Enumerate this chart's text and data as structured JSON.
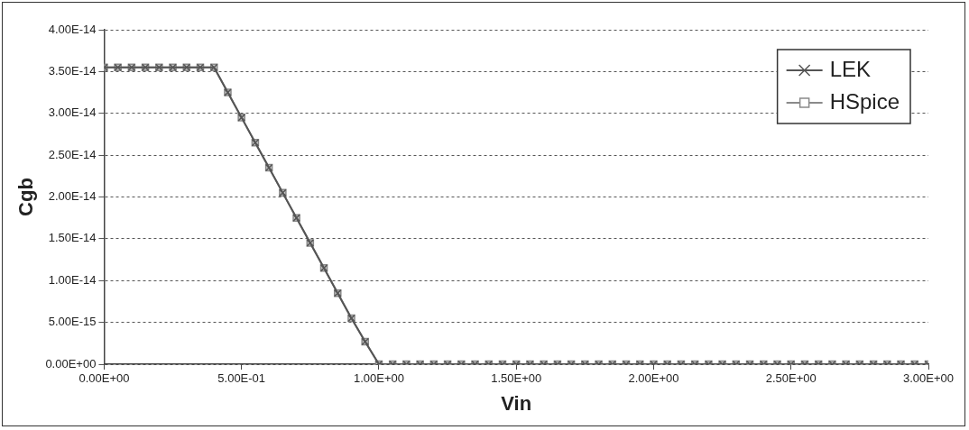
{
  "chart_data": {
    "type": "line",
    "xlabel": "Vin",
    "ylabel": "Cgb",
    "x": [
      0,
      0.05,
      0.1,
      0.15,
      0.2,
      0.25,
      0.3,
      0.35,
      0.4,
      0.45,
      0.5,
      0.55,
      0.6,
      0.65,
      0.7,
      0.75,
      0.8,
      0.85,
      0.9,
      0.95,
      1.0,
      1.05,
      1.1,
      1.15,
      1.2,
      1.25,
      1.3,
      1.35,
      1.4,
      1.45,
      1.5,
      1.55,
      1.6,
      1.65,
      1.7,
      1.75,
      1.8,
      1.85,
      1.9,
      1.95,
      2.0,
      2.05,
      2.1,
      2.15,
      2.2,
      2.25,
      2.3,
      2.35,
      2.4,
      2.45,
      2.5,
      2.55,
      2.6,
      2.65,
      2.7,
      2.75,
      2.8,
      2.85,
      2.9,
      2.95,
      3.0
    ],
    "series": [
      {
        "name": "LEK",
        "color": "#555555",
        "marker": "cross",
        "values": [
          3.55e-14,
          3.55e-14,
          3.55e-14,
          3.55e-14,
          3.55e-14,
          3.55e-14,
          3.55e-14,
          3.55e-14,
          3.55e-14,
          3.25e-14,
          2.95e-14,
          2.65e-14,
          2.35e-14,
          2.05e-14,
          1.75e-14,
          1.45e-14,
          1.15e-14,
          8.5e-15,
          5.5e-15,
          2.7e-15,
          0,
          0,
          0,
          0,
          0,
          0,
          0,
          0,
          0,
          0,
          0,
          0,
          0,
          0,
          0,
          0,
          0,
          0,
          0,
          0,
          0,
          0,
          0,
          0,
          0,
          0,
          0,
          0,
          0,
          0,
          0,
          0,
          0,
          0,
          0,
          0,
          0,
          0,
          0,
          0,
          0
        ]
      },
      {
        "name": "HSpice",
        "color": "#8a8a8a",
        "marker": "square",
        "values": [
          3.55e-14,
          3.55e-14,
          3.55e-14,
          3.55e-14,
          3.55e-14,
          3.55e-14,
          3.55e-14,
          3.55e-14,
          3.55e-14,
          3.25e-14,
          2.95e-14,
          2.65e-14,
          2.35e-14,
          2.05e-14,
          1.75e-14,
          1.45e-14,
          1.15e-14,
          8.5e-15,
          5.5e-15,
          2.7e-15,
          0,
          0,
          0,
          0,
          0,
          0,
          0,
          0,
          0,
          0,
          0,
          0,
          0,
          0,
          0,
          0,
          0,
          0,
          0,
          0,
          0,
          0,
          0,
          0,
          0,
          0,
          0,
          0,
          0,
          0,
          0,
          0,
          0,
          0,
          0,
          0,
          0,
          0,
          0,
          0,
          0
        ]
      }
    ],
    "xlim": [
      0,
      3
    ],
    "xticks": [
      {
        "value": 0,
        "label": "0.00E+00"
      },
      {
        "value": 0.5,
        "label": "5.00E-01"
      },
      {
        "value": 1,
        "label": "1.00E+00"
      },
      {
        "value": 1.5,
        "label": "1.50E+00"
      },
      {
        "value": 2,
        "label": "2.00E+00"
      },
      {
        "value": 2.5,
        "label": "2.50E+00"
      },
      {
        "value": 3,
        "label": "3.00E+00"
      }
    ],
    "ylim": [
      0,
      4e-14
    ],
    "yticks": [
      {
        "value": 0,
        "label": "0.00E+00"
      },
      {
        "value": 5e-15,
        "label": "5.00E-15"
      },
      {
        "value": 1e-14,
        "label": "1.00E-14"
      },
      {
        "value": 1.5e-14,
        "label": "1.50E-14"
      },
      {
        "value": 2e-14,
        "label": "2.00E-14"
      },
      {
        "value": 2.5e-14,
        "label": "2.50E-14"
      },
      {
        "value": 3e-14,
        "label": "3.00E-14"
      },
      {
        "value": 3.5e-14,
        "label": "3.50E-14"
      },
      {
        "value": 4e-14,
        "label": "4.00E-14"
      }
    ],
    "grid": "y",
    "legend": "top right",
    "line_style": "solid"
  }
}
